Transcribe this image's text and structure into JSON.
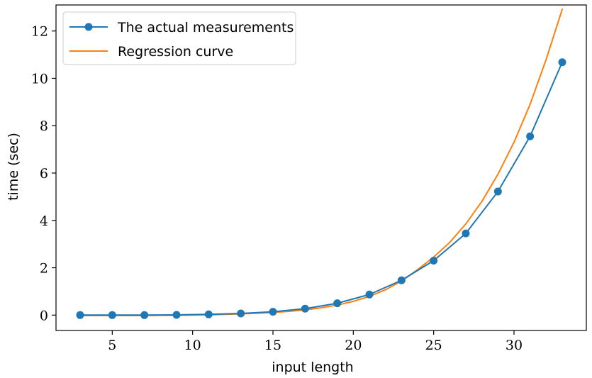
{
  "chart_data": {
    "type": "line",
    "title": "",
    "xlabel": "input length",
    "ylabel": "time (sec)",
    "xlim": [
      1.5,
      34.5
    ],
    "ylim": [
      -0.65,
      13.1
    ],
    "xticks": [
      5,
      10,
      15,
      20,
      25,
      30
    ],
    "yticks": [
      0,
      2,
      4,
      6,
      8,
      10,
      12
    ],
    "grid": false,
    "legend_position": "top-left",
    "series": [
      {
        "name": "The actual measurements",
        "color": "#1f77b4",
        "marker": "circle",
        "x": [
          3,
          5,
          7,
          9,
          11,
          13,
          15,
          17,
          19,
          21,
          23,
          25,
          27,
          29,
          31,
          33
        ],
        "y": [
          0.0,
          0.0,
          0.0,
          0.01,
          0.03,
          0.07,
          0.14,
          0.27,
          0.5,
          0.87,
          1.47,
          2.3,
          3.45,
          5.22,
          7.55,
          10.68
        ]
      },
      {
        "name": "Regression curve",
        "color": "#ff7f0e",
        "marker": "none",
        "x": [
          3,
          4,
          5,
          6,
          7,
          8,
          9,
          10,
          11,
          12,
          13,
          14,
          15,
          16,
          17,
          18,
          19,
          20,
          21,
          22,
          23,
          24,
          25,
          26,
          27,
          28,
          29,
          30,
          31,
          32,
          33
        ],
        "y": [
          -0.02,
          -0.02,
          -0.02,
          -0.02,
          -0.02,
          -0.01,
          -0.01,
          0.0,
          0.01,
          0.03,
          0.05,
          0.08,
          0.11,
          0.16,
          0.22,
          0.31,
          0.42,
          0.58,
          0.79,
          1.07,
          1.44,
          1.92,
          2.45,
          3.07,
          3.85,
          4.8,
          5.95,
          7.3,
          8.9,
          10.8,
          12.92
        ]
      }
    ]
  }
}
